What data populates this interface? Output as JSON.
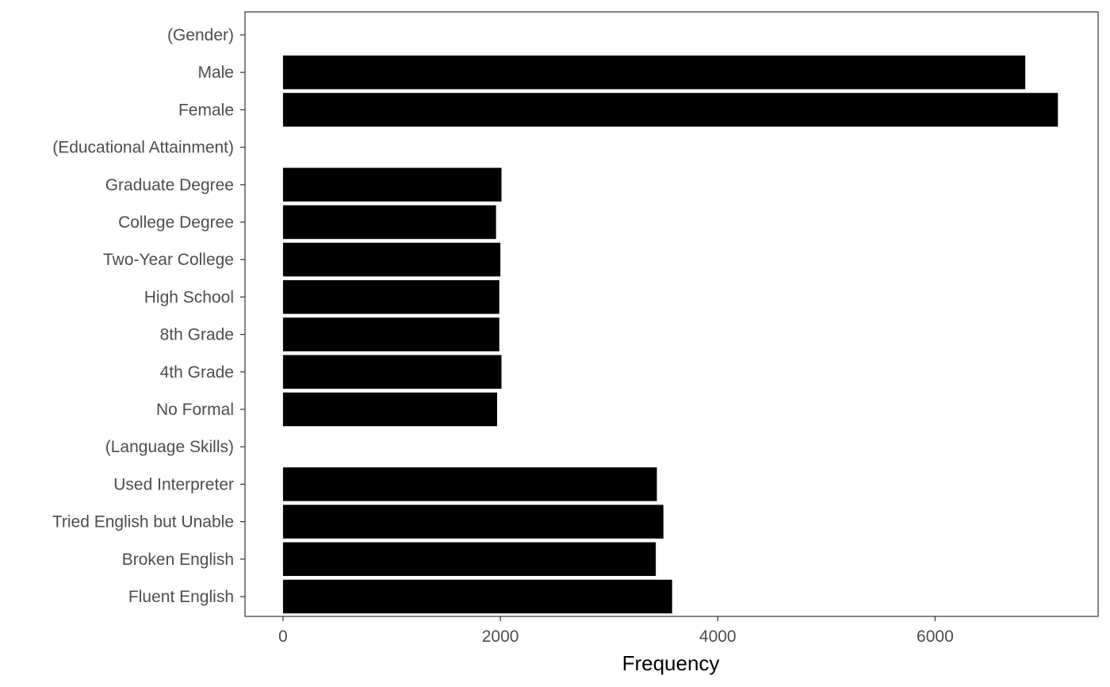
{
  "chart_data": {
    "type": "bar",
    "orientation": "horizontal",
    "categories": [
      "(Gender)",
      "Male",
      "Female",
      "(Educational Attainment)",
      "Graduate Degree",
      "College Degree",
      "Two-Year College",
      "High School",
      "8th Grade",
      "4th Grade",
      "No Formal",
      "(Language Skills)",
      "Used Interpreter",
      "Tried English but Unable",
      "Broken English",
      "Fluent English"
    ],
    "values": [
      null,
      6830,
      7130,
      null,
      2010,
      1960,
      2000,
      1990,
      1990,
      2010,
      1970,
      null,
      3440,
      3500,
      3430,
      3580
    ],
    "xlabel": "Frequency",
    "ylabel": "",
    "xlim": [
      -350,
      7500
    ],
    "xticks": [
      0,
      2000,
      4000,
      6000
    ],
    "xtick_labels": [
      "0",
      "2000",
      "4000",
      "6000"
    ],
    "bar_color": "#000000",
    "grid": false,
    "legend": "none"
  }
}
